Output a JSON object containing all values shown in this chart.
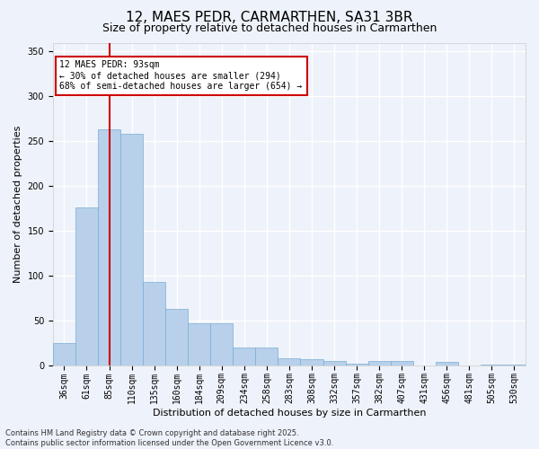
{
  "title": "12, MAES PEDR, CARMARTHEN, SA31 3BR",
  "subtitle": "Size of property relative to detached houses in Carmarthen",
  "xlabel": "Distribution of detached houses by size in Carmarthen",
  "ylabel": "Number of detached properties",
  "categories": [
    "36sqm",
    "61sqm",
    "85sqm",
    "110sqm",
    "135sqm",
    "160sqm",
    "184sqm",
    "209sqm",
    "234sqm",
    "258sqm",
    "283sqm",
    "308sqm",
    "332sqm",
    "357sqm",
    "382sqm",
    "407sqm",
    "431sqm",
    "456sqm",
    "481sqm",
    "505sqm",
    "530sqm"
  ],
  "values": [
    25,
    176,
    263,
    258,
    93,
    63,
    47,
    47,
    20,
    20,
    8,
    7,
    5,
    2,
    5,
    5,
    0,
    4,
    0,
    1,
    1
  ],
  "bar_color": "#b8d0ea",
  "bar_edge_color": "#7aadd4",
  "vline_x_index": 2,
  "vline_color": "#cc0000",
  "annotation_text": "12 MAES PEDR: 93sqm\n← 30% of detached houses are smaller (294)\n68% of semi-detached houses are larger (654) →",
  "annotation_box_facecolor": "#ffffff",
  "annotation_box_edgecolor": "#cc0000",
  "ylim": [
    0,
    360
  ],
  "yticks": [
    0,
    50,
    100,
    150,
    200,
    250,
    300,
    350
  ],
  "footer": "Contains HM Land Registry data © Crown copyright and database right 2025.\nContains public sector information licensed under the Open Government Licence v3.0.",
  "bg_color": "#eef2fa",
  "plot_bg_color": "#eef2fa",
  "grid_color": "#ffffff",
  "title_fontsize": 11,
  "subtitle_fontsize": 9,
  "axis_label_fontsize": 8,
  "tick_fontsize": 7,
  "annotation_fontsize": 7,
  "footer_fontsize": 6
}
